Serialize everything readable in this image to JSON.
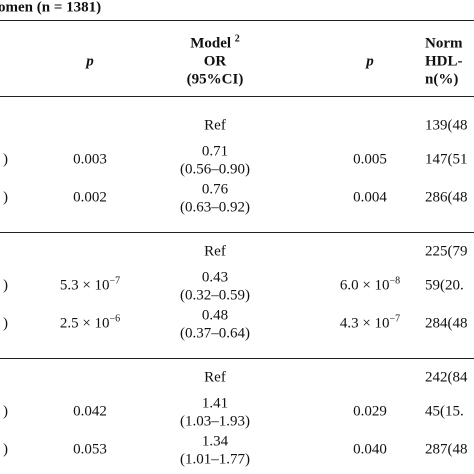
{
  "title": "omen (n = 1381)",
  "header": {
    "p1": "p",
    "model": "Model",
    "model_sup": "2",
    "or": "OR",
    "ci": "(95%CI)",
    "p2": "p",
    "norm": "Norm",
    "hdl": "HDL-",
    "n": "n(%)"
  },
  "groups": [
    {
      "rows": [
        {
          "or": "Ref",
          "n": "139(48"
        },
        {
          "label": ")",
          "p1": "0.003",
          "or": "0.71",
          "ci": "(0.56–0.90)",
          "p2": "0.005",
          "n": "147(51"
        },
        {
          "label": ")",
          "p1": "0.002",
          "or": "0.76",
          "ci": "(0.63–0.92)",
          "p2": "0.004",
          "n": "286(48"
        }
      ]
    },
    {
      "rows": [
        {
          "or": "Ref",
          "n": "225(79"
        },
        {
          "label": ")",
          "p1": {
            "base": "5.3 × 10",
            "exp": "−7"
          },
          "or": "0.43",
          "ci": "(0.32–0.59)",
          "p2": {
            "base": "6.0 × 10",
            "exp": "−8"
          },
          "n": "59(20."
        },
        {
          "label": ")",
          "p1": {
            "base": "2.5 × 10",
            "exp": "−6"
          },
          "or": "0.48",
          "ci": "(0.37–0.64)",
          "p2": {
            "base": "4.3 × 10",
            "exp": "−7"
          },
          "n": "284(48"
        }
      ]
    },
    {
      "rows": [
        {
          "or": "Ref",
          "n": "242(84"
        },
        {
          "label": ")",
          "p1": "0.042",
          "or": "1.41",
          "ci": "(1.03–1.93)",
          "p2": "0.029",
          "n": "45(15."
        },
        {
          "label": ")",
          "p1": "0.053",
          "or": "1.34",
          "ci": "(1.01–1.77)",
          "p2": "0.040",
          "n": "287(48"
        }
      ]
    }
  ]
}
